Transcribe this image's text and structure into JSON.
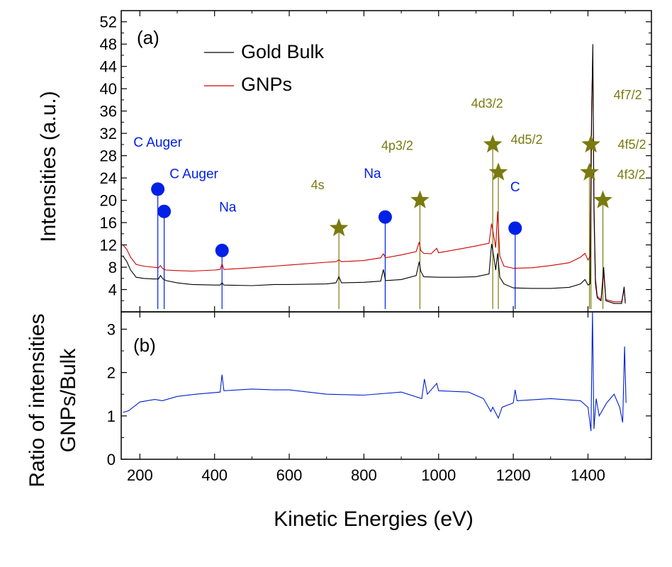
{
  "chart_data": [
    {
      "panel": "top",
      "type": "line",
      "panel_label": "(a)",
      "ylabel": "Intensities (a.u.)",
      "xlim": [
        150,
        1570
      ],
      "ylim": [
        0,
        54
      ],
      "yticks": [
        4,
        8,
        12,
        16,
        20,
        24,
        28,
        32,
        36,
        40,
        44,
        48,
        52
      ],
      "legend_position": "top-center",
      "series": [
        {
          "name": "Gold Bulk",
          "color": "#000000",
          "points": [
            [
              155,
              10
            ],
            [
              165,
              9
            ],
            [
              175,
              7.5
            ],
            [
              190,
              6.2
            ],
            [
              210,
              6
            ],
            [
              235,
              5.9
            ],
            [
              250,
              5.9
            ],
            [
              255,
              6.5
            ],
            [
              262,
              5.9
            ],
            [
              270,
              5.6
            ],
            [
              300,
              5.2
            ],
            [
              340,
              4.9
            ],
            [
              400,
              4.8
            ],
            [
              415,
              4.8
            ],
            [
              420,
              5.2
            ],
            [
              425,
              4.8
            ],
            [
              500,
              4.7
            ],
            [
              560,
              4.9
            ],
            [
              600,
              4.9
            ],
            [
              700,
              5
            ],
            [
              725,
              5.2
            ],
            [
              733,
              6.3
            ],
            [
              740,
              5.2
            ],
            [
              800,
              5.3
            ],
            [
              845,
              5.5
            ],
            [
              852,
              7.6
            ],
            [
              858,
              5.6
            ],
            [
              900,
              5.8
            ],
            [
              940,
              6.5
            ],
            [
              948,
              9
            ],
            [
              952,
              7.3
            ],
            [
              960,
              6.3
            ],
            [
              1000,
              6.2
            ],
            [
              1050,
              6.2
            ],
            [
              1100,
              6.3
            ],
            [
              1135,
              6.8
            ],
            [
              1142,
              12.2
            ],
            [
              1148,
              9.8
            ],
            [
              1153,
              7.5
            ],
            [
              1158,
              10.5
            ],
            [
              1164,
              6.2
            ],
            [
              1175,
              5
            ],
            [
              1200,
              4.3
            ],
            [
              1250,
              4.2
            ],
            [
              1300,
              4.2
            ],
            [
              1350,
              4.4
            ],
            [
              1380,
              5
            ],
            [
              1392,
              5.8
            ],
            [
              1400,
              4.8
            ],
            [
              1406,
              5
            ],
            [
              1410,
              36
            ],
            [
              1413,
              48
            ],
            [
              1416,
              18
            ],
            [
              1420,
              5
            ],
            [
              1425,
              2.5
            ],
            [
              1435,
              2
            ],
            [
              1442,
              8
            ],
            [
              1448,
              2
            ],
            [
              1470,
              1.5
            ],
            [
              1490,
              1.5
            ],
            [
              1497,
              4.5
            ],
            [
              1500,
              1.5
            ]
          ]
        },
        {
          "name": "GNPs",
          "color": "#cc0000",
          "points": [
            [
              155,
              12
            ],
            [
              165,
              11.2
            ],
            [
              175,
              9.8
            ],
            [
              190,
              8.5
            ],
            [
              210,
              8.2
            ],
            [
              235,
              8
            ],
            [
              250,
              7.9
            ],
            [
              255,
              8.3
            ],
            [
              262,
              7.7
            ],
            [
              270,
              7.5
            ],
            [
              300,
              7.4
            ],
            [
              340,
              7.3
            ],
            [
              400,
              7.5
            ],
            [
              415,
              7.6
            ],
            [
              420,
              8.6
            ],
            [
              425,
              7.6
            ],
            [
              500,
              7.9
            ],
            [
              560,
              8.2
            ],
            [
              600,
              8.4
            ],
            [
              700,
              8.9
            ],
            [
              725,
              9
            ],
            [
              733,
              9.3
            ],
            [
              740,
              9
            ],
            [
              800,
              9.2
            ],
            [
              845,
              9.7
            ],
            [
              852,
              10.4
            ],
            [
              858,
              9.7
            ],
            [
              900,
              10.2
            ],
            [
              940,
              10.8
            ],
            [
              948,
              12.5
            ],
            [
              952,
              11
            ],
            [
              960,
              10.5
            ],
            [
              980,
              10.4
            ],
            [
              995,
              11.4
            ],
            [
              1000,
              10.6
            ],
            [
              1050,
              11.2
            ],
            [
              1100,
              11.8
            ],
            [
              1135,
              12.3
            ],
            [
              1142,
              15.8
            ],
            [
              1148,
              13.5
            ],
            [
              1153,
              11.5
            ],
            [
              1158,
              18
            ],
            [
              1164,
              10
            ],
            [
              1175,
              8.2
            ],
            [
              1200,
              7.8
            ],
            [
              1250,
              7.9
            ],
            [
              1300,
              8.3
            ],
            [
              1350,
              8.8
            ],
            [
              1380,
              9.8
            ],
            [
              1392,
              10.5
            ],
            [
              1400,
              9.3
            ],
            [
              1406,
              10
            ],
            [
              1410,
              38
            ],
            [
              1413,
              45
            ],
            [
              1416,
              20
            ],
            [
              1420,
              6
            ],
            [
              1425,
              2.8
            ],
            [
              1435,
              2.2
            ],
            [
              1442,
              7
            ],
            [
              1448,
              2.2
            ],
            [
              1470,
              1.8
            ],
            [
              1490,
              1.8
            ],
            [
              1497,
              4
            ],
            [
              1500,
              1.8
            ]
          ]
        }
      ],
      "blue_markers": [
        {
          "x": 248,
          "y": 22,
          "label": "C Auger"
        },
        {
          "x": 265,
          "y": 18,
          "label": "C Auger"
        },
        {
          "x": 420,
          "y": 11,
          "label": "Na"
        },
        {
          "x": 857,
          "y": 17,
          "label": "Na"
        },
        {
          "x": 1205,
          "y": 15,
          "label": "C"
        }
      ],
      "gold_markers": [
        {
          "x": 733,
          "y": 15,
          "label": "4s"
        },
        {
          "x": 950,
          "y": 20,
          "label": "4p3/2"
        },
        {
          "x": 1145,
          "y": 30,
          "label": "4d3/2"
        },
        {
          "x": 1160,
          "y": 25,
          "label": "4d5/2"
        },
        {
          "x": 1408,
          "y": 30,
          "label": "4f7/2"
        },
        {
          "x": 1404,
          "y": 25,
          "label": "4f5/2"
        },
        {
          "x": 1440,
          "y": 20,
          "label": "4f3/2"
        }
      ]
    },
    {
      "panel": "bottom",
      "type": "line",
      "panel_label": "(b)",
      "ylabel": "Ratio of intensities\nGNPs/Bulk",
      "xlabel": "Kinetic Energies (eV)",
      "xlim": [
        150,
        1570
      ],
      "ylim": [
        0,
        3.4
      ],
      "yticks": [
        0,
        1,
        2,
        3
      ],
      "xticks": [
        200,
        400,
        600,
        800,
        1000,
        1200,
        1400
      ],
      "series": [
        {
          "name": "GNPs/Bulk",
          "color": "#0020cc",
          "points": [
            [
              155,
              1.08
            ],
            [
              170,
              1.12
            ],
            [
              200,
              1.32
            ],
            [
              240,
              1.38
            ],
            [
              260,
              1.35
            ],
            [
              300,
              1.45
            ],
            [
              350,
              1.5
            ],
            [
              415,
              1.55
            ],
            [
              420,
              1.95
            ],
            [
              425,
              1.58
            ],
            [
              500,
              1.62
            ],
            [
              560,
              1.6
            ],
            [
              600,
              1.6
            ],
            [
              700,
              1.5
            ],
            [
              800,
              1.48
            ],
            [
              900,
              1.55
            ],
            [
              955,
              1.4
            ],
            [
              962,
              1.85
            ],
            [
              970,
              1.5
            ],
            [
              995,
              1.75
            ],
            [
              1000,
              1.58
            ],
            [
              1080,
              1.55
            ],
            [
              1120,
              1.4
            ],
            [
              1140,
              1.1
            ],
            [
              1145,
              1.2
            ],
            [
              1160,
              0.95
            ],
            [
              1170,
              1.2
            ],
            [
              1200,
              1.3
            ],
            [
              1205,
              1.6
            ],
            [
              1210,
              1.35
            ],
            [
              1300,
              1.4
            ],
            [
              1380,
              1.35
            ],
            [
              1400,
              1.2
            ],
            [
              1408,
              0.65
            ],
            [
              1412,
              3.4
            ],
            [
              1416,
              0.7
            ],
            [
              1422,
              1.4
            ],
            [
              1430,
              1.0
            ],
            [
              1450,
              1.3
            ],
            [
              1470,
              1.5
            ],
            [
              1485,
              1.2
            ],
            [
              1493,
              0.85
            ],
            [
              1498,
              2.6
            ],
            [
              1502,
              1.3
            ]
          ]
        }
      ]
    }
  ],
  "legend_line_color_gold": "#000000",
  "marker_color_blue": "#0020e6",
  "marker_color_gold": "#7a7a10"
}
